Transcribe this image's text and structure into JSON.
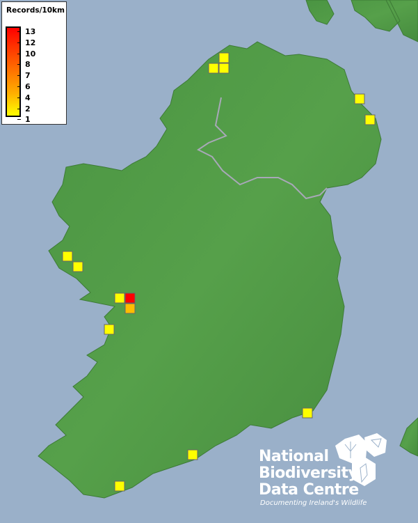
{
  "legend": {
    "title": "Records/10km",
    "labels": [
      "13",
      "12",
      "10",
      "8",
      "7",
      "6",
      "4",
      "2",
      "1"
    ],
    "color_min": "#ffff00",
    "color_max": "#ff0000"
  },
  "records": [
    {
      "count": 1
    },
    {
      "count": 1
    },
    {
      "count": 1
    },
    {
      "count": 1
    },
    {
      "count": 1
    },
    {
      "count": 1
    },
    {
      "count": 1
    },
    {
      "count": 1
    },
    {
      "count": 13
    },
    {
      "count": 6
    },
    {
      "count": 1
    },
    {
      "count": 1
    },
    {
      "count": 1
    },
    {
      "count": 1
    }
  ],
  "colors": {
    "sea": "#9ab0c9",
    "land": "#4f9a45",
    "border": "#a8a8b8"
  },
  "logo": {
    "line1": "National",
    "line2": "Biodiversity",
    "line3": "Data Centre",
    "tagline": "Documenting Ireland's Wildlife"
  }
}
